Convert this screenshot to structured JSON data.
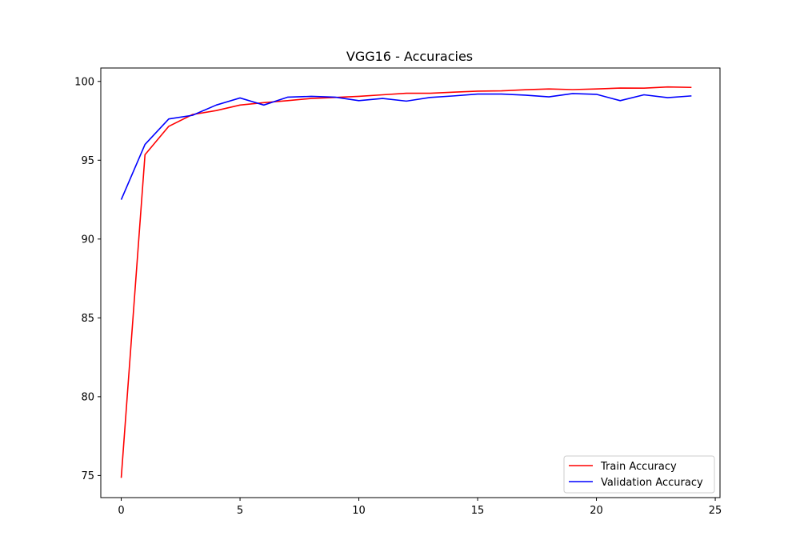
{
  "chart_data": {
    "type": "line",
    "title": "VGG16 - Accuracies",
    "xlabel": "",
    "ylabel": "",
    "x": [
      0,
      1,
      2,
      3,
      4,
      5,
      6,
      7,
      8,
      9,
      10,
      11,
      12,
      13,
      14,
      15,
      16,
      17,
      18,
      19,
      20,
      21,
      22,
      23,
      24
    ],
    "xlim": [
      -0.86,
      25.2
    ],
    "ylim": [
      73.6,
      100.85
    ],
    "xticks": [
      0,
      5,
      10,
      15,
      20,
      25
    ],
    "yticks": [
      75,
      80,
      85,
      90,
      95,
      100
    ],
    "grid": false,
    "legend_position": "lower right",
    "series": [
      {
        "name": "Train Accuracy",
        "color": "#ff0000",
        "values": [
          74.85,
          95.35,
          97.15,
          97.9,
          98.15,
          98.5,
          98.65,
          98.78,
          98.92,
          98.98,
          99.05,
          99.15,
          99.25,
          99.25,
          99.32,
          99.38,
          99.4,
          99.47,
          99.52,
          99.48,
          99.52,
          99.58,
          99.57,
          99.65,
          99.62
        ]
      },
      {
        "name": "Validation Accuracy",
        "color": "#0000ff",
        "values": [
          92.5,
          96.0,
          97.62,
          97.85,
          98.5,
          98.95,
          98.5,
          99.0,
          99.05,
          99.0,
          98.78,
          98.92,
          98.75,
          98.98,
          99.08,
          99.2,
          99.2,
          99.13,
          99.02,
          99.23,
          99.18,
          98.78,
          99.15,
          98.97,
          99.08
        ]
      }
    ]
  }
}
